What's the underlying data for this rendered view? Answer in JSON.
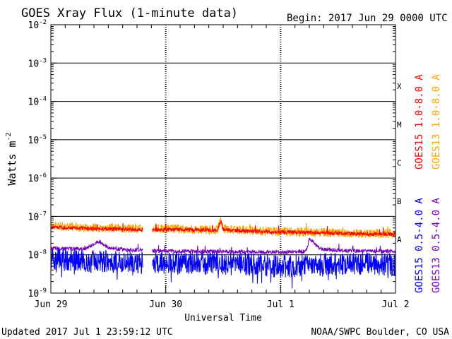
{
  "chart_data": {
    "type": "line",
    "title": "GOES Xray Flux (1-minute data)",
    "begin_label": "Begin:  2017 Jun 29 0000 UTC",
    "xlabel": "Universal Time",
    "ylabel": "Watts m",
    "ylabel_exp": "-2",
    "y_scale": "log",
    "ylim": [
      1e-09,
      0.01
    ],
    "y_ticks": [
      {
        "base": "10",
        "exp": "-9",
        "value": 1e-09
      },
      {
        "base": "10",
        "exp": "-8",
        "value": 1e-08
      },
      {
        "base": "10",
        "exp": "-7",
        "value": 1e-07
      },
      {
        "base": "10",
        "exp": "-6",
        "value": 1e-06
      },
      {
        "base": "10",
        "exp": "-5",
        "value": 1e-05
      },
      {
        "base": "10",
        "exp": "-4",
        "value": 0.0001
      },
      {
        "base": "10",
        "exp": "-3",
        "value": 0.001
      },
      {
        "base": "10",
        "exp": "-2",
        "value": 0.01
      }
    ],
    "x_ticks": [
      {
        "label": "Jun 29",
        "day": 0
      },
      {
        "label": "Jun 30",
        "day": 1
      },
      {
        "label": "Jul 1",
        "day": 2
      },
      {
        "label": "Jul 2",
        "day": 3
      }
    ],
    "flare_classes": [
      {
        "label": "A",
        "value": 1e-08
      },
      {
        "label": "B",
        "value": 1e-07
      },
      {
        "label": "C",
        "value": 1e-06
      },
      {
        "label": "M",
        "value": 1e-05
      },
      {
        "label": "X",
        "value": 0.0001
      }
    ],
    "grid": "horizontal lines at each decade; dotted vertical lines at day boundaries",
    "legend_placement": "right, rotated",
    "x_unit": "days since 2017 Jun 29 0000 UTC",
    "series": [
      {
        "name": "GOES15 1.0-8.0 A",
        "color": "#ff0000",
        "noise": 0.05,
        "points": [
          [
            0,
            5.2e-08
          ],
          [
            0.3,
            4.8e-08
          ],
          [
            0.6,
            4.6e-08
          ],
          [
            0.8,
            4.5e-08
          ],
          [
            0.85,
            null
          ],
          [
            0.88,
            4.4e-08
          ],
          [
            1.1,
            4.5e-08
          ],
          [
            1.45,
            4.3e-08
          ],
          [
            1.48,
            7.5e-08
          ],
          [
            1.5,
            4.5e-08
          ],
          [
            1.7,
            4.1e-08
          ],
          [
            1.9,
            3.9e-08
          ],
          [
            2.2,
            3.8e-08
          ],
          [
            2.5,
            3.6e-08
          ],
          [
            2.8,
            3.4e-08
          ],
          [
            3,
            3.4e-08
          ]
        ]
      },
      {
        "name": "GOES13 1.0-8.0 A",
        "color": "#ffa500",
        "noise": 0.12,
        "points": [
          [
            0,
            5.5e-08
          ],
          [
            0.3,
            5e-08
          ],
          [
            0.6,
            4.8e-08
          ],
          [
            0.8,
            4.7e-08
          ],
          [
            0.85,
            null
          ],
          [
            0.88,
            4.6e-08
          ],
          [
            1.1,
            4.6e-08
          ],
          [
            1.45,
            4.3e-08
          ],
          [
            1.48,
            7.8e-08
          ],
          [
            1.5,
            4.6e-08
          ],
          [
            1.7,
            4.2e-08
          ],
          [
            1.9,
            4e-08
          ],
          [
            2.2,
            3.8e-08
          ],
          [
            2.5,
            3.6e-08
          ],
          [
            2.8,
            3.5e-08
          ],
          [
            3,
            3.5e-08
          ]
        ]
      },
      {
        "name": "GOES15 0.5-4.0 A",
        "color": "#0000ff",
        "noise": 0.3,
        "points": [
          [
            0,
            7e-09
          ],
          [
            0.3,
            6.5e-09
          ],
          [
            0.6,
            6e-09
          ],
          [
            0.8,
            5.8e-09
          ],
          [
            0.85,
            null
          ],
          [
            0.88,
            5.8e-09
          ],
          [
            1.2,
            5.8e-09
          ],
          [
            1.5,
            5.5e-09
          ],
          [
            1.8,
            5.2e-09
          ],
          [
            2.0,
            4.6e-09
          ],
          [
            2.2,
            5e-09
          ],
          [
            2.5,
            5.2e-09
          ],
          [
            2.8,
            5.6e-09
          ],
          [
            3,
            5e-09
          ]
        ]
      },
      {
        "name": "GOES13 0.5-4.0 A",
        "color": "#7700bb",
        "noise": 0.05,
        "points": [
          [
            0,
            1.45e-08
          ],
          [
            0.3,
            1.4e-08
          ],
          [
            0.42,
            2.2e-08
          ],
          [
            0.5,
            1.5e-08
          ],
          [
            0.7,
            1.3e-08
          ],
          [
            0.8,
            1.3e-08
          ],
          [
            0.85,
            null
          ],
          [
            0.88,
            1.25e-08
          ],
          [
            1.5,
            1.2e-08
          ],
          [
            2.0,
            1.15e-08
          ],
          [
            2.22,
            1.2e-08
          ],
          [
            2.25,
            2.5e-08
          ],
          [
            2.35,
            1.4e-08
          ],
          [
            2.6,
            1.25e-08
          ],
          [
            3,
            1.2e-08
          ]
        ]
      }
    ]
  },
  "footer": {
    "updated": "Updated 2017 Jul  1 23:59:12 UTC",
    "credit": "NOAA/SWPC Boulder, CO USA"
  }
}
